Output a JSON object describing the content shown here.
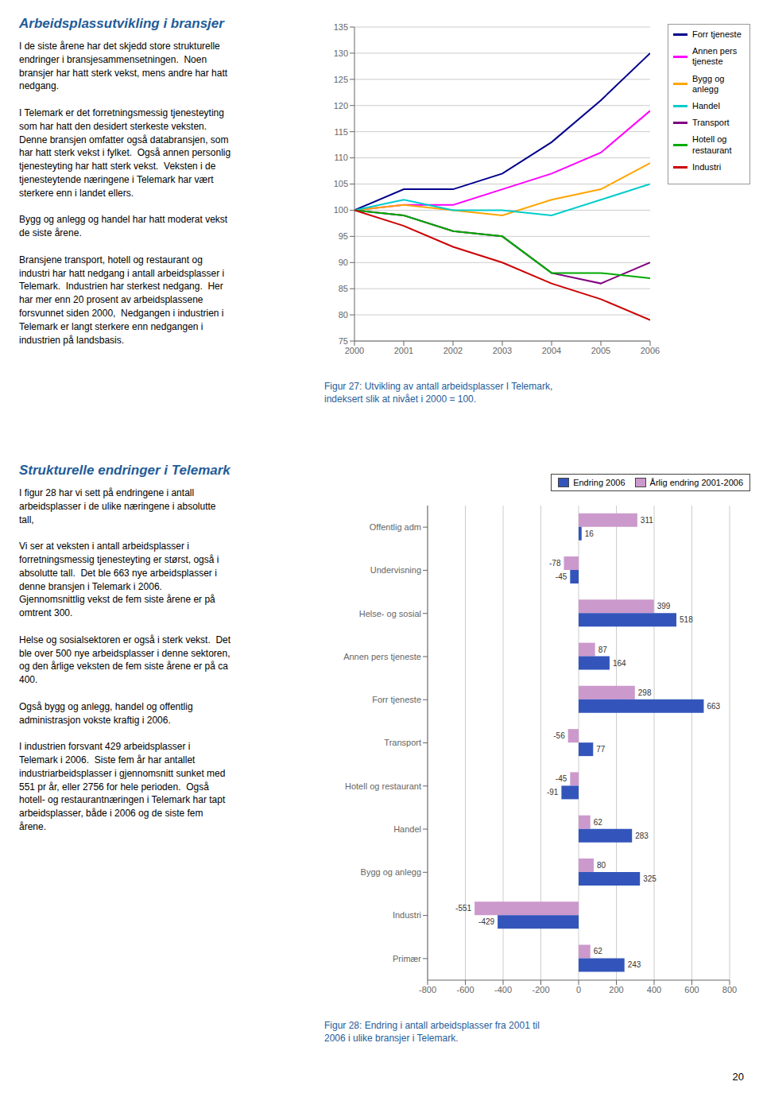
{
  "chart_data": [
    {
      "type": "line",
      "title": "Figur 27: Utvikling av antall arbeidsplasser I Telemark,\nindeksert slik at nivået i 2000 = 100.",
      "annotations": [
        "Arbeidsplassutvikling i bransjer",
        "I de siste årene har det skjedd store strukturelle\nendringer i bransjesammensetningen.  Noen\nbransjer har hatt sterk vekst, mens andre har hatt\nnedgang.\n\nI Telemark er det forretningsmessig tjenesteyting\nsom har hatt den desidert sterkeste veksten.\nDenne bransjen omfatter også databransjen, som\nhar hatt sterk vekst i fylket.  Også annen personlig\ntjenesteyting har hatt sterk vekst.  Veksten i de\ntjenesteytende næringene i Telemark har vært\nsterkere enn i landet ellers.\n\nBygg og anlegg og handel har hatt moderat vekst\nde siste årene.\n\nBransjene transport, hotell og restaurant og\nindustri har hatt nedgang i antall arbeidsplasser i\nTelemark.  Industrien har sterkest nedgang.  Her\nhar mer enn 20 prosent av arbeidsplassene\nforsvunnet siden 2000,  Nedgangen i industrien i\nTelemark er langt sterkere enn nedgangen i\nindustrien på landsbasis."
      ],
      "x": [
        2000,
        2001,
        2002,
        2003,
        2004,
        2005,
        2006
      ],
      "xlim": [
        2000,
        2006
      ],
      "xticks": [
        2000,
        2001,
        2002,
        2003,
        2004,
        2005,
        2006
      ],
      "ylim": [
        75,
        135
      ],
      "yticks": [
        75,
        80,
        85,
        90,
        95,
        100,
        105,
        110,
        115,
        120,
        125,
        130,
        135
      ],
      "grid": true,
      "legend": "right",
      "series": [
        {
          "name": "Forr tjeneste",
          "color": "#00008B",
          "values": [
            100,
            104,
            104,
            107,
            113,
            121,
            130
          ]
        },
        {
          "name": "Annen pers\ntjeneste",
          "color": "#FF00FF",
          "values": [
            100,
            101,
            101,
            104,
            107,
            111,
            119
          ]
        },
        {
          "name": "Bygg og anlegg",
          "color": "#FFA500",
          "values": [
            100,
            101,
            100,
            99,
            102,
            104,
            109
          ]
        },
        {
          "name": "Handel",
          "color": "#00CCCC",
          "values": [
            100,
            102,
            100,
            100,
            99,
            102,
            105
          ]
        },
        {
          "name": "Transport",
          "color": "#800080",
          "values": [
            100,
            99,
            96,
            95,
            88,
            86,
            90
          ]
        },
        {
          "name": "Hotell og\nrestaurant",
          "color": "#00AA00",
          "values": [
            100,
            99,
            96,
            95,
            88,
            88,
            87
          ]
        },
        {
          "name": "Industri",
          "color": "#CC0000",
          "values": [
            100,
            97,
            93,
            90,
            86,
            83,
            79
          ]
        }
      ]
    },
    {
      "type": "bar",
      "orientation": "horizontal",
      "title": "Figur 28: Endring i antall arbeidsplasser fra 2001 til\n2006 i ulike bransjer i Telemark.",
      "annotations": [
        "Strukturelle endringer i Telemark",
        "I figur 28 har vi sett på endringene i antall\narbeidsplasser i de ulike næringene i absolutte\ntall,\n\nVi ser at veksten i antall arbeidsplasser i\nforretningsmessig tjenesteyting er størst, også i\nabsolutte tall.  Det ble 663 nye arbeidsplasser i\ndenne bransjen i Telemark i 2006.\nGjennomsnittlig vekst de fem siste årene er på\nomtrent 300.\n\nHelse og sosialsektoren er også i sterk vekst.  Det\nble over 500 nye arbeidsplasser i denne sektoren,\nog den årlige veksten de fem siste årene er på ca\n400.\n\nOgså bygg og anlegg, handel og offentlig\nadministrasjon vokste kraftig i 2006.\n\nI industrien forsvant 429 arbeidsplasser i\nTelemark i 2006.  Siste fem år har antallet\nindustriarbeidsplasser i gjennomsnitt sunket med\n551 pr år, eller 2756 for hele perioden.  Også\nhotell- og restaurantnæringen i Telemark har tapt\narbeidsplasser, både i 2006 og de siste fem\nårene.",
        "20"
      ],
      "categories": [
        "Offentlig adm",
        "Undervisning",
        "Helse- og sosial",
        "Annen pers tjeneste",
        "Forr tjeneste",
        "Transport",
        "Hotell og restaurant",
        "Handel",
        "Bygg og anlegg",
        "Industri",
        "Primær"
      ],
      "xlim": [
        -800,
        800
      ],
      "xticks": [
        -800,
        -600,
        -400,
        -200,
        0,
        200,
        400,
        600,
        800
      ],
      "grid": true,
      "legend": "top",
      "data_labels": true,
      "series": [
        {
          "name": "Endring 2006",
          "color": "#3355BB",
          "values": [
            16,
            -45,
            518,
            164,
            663,
            77,
            -91,
            283,
            325,
            -429,
            243
          ]
        },
        {
          "name": "Årlig endring 2001-2006",
          "color": "#CC99CC",
          "values": [
            311,
            -78,
            399,
            87,
            298,
            -56,
            -45,
            62,
            80,
            -551,
            62
          ]
        }
      ]
    }
  ]
}
